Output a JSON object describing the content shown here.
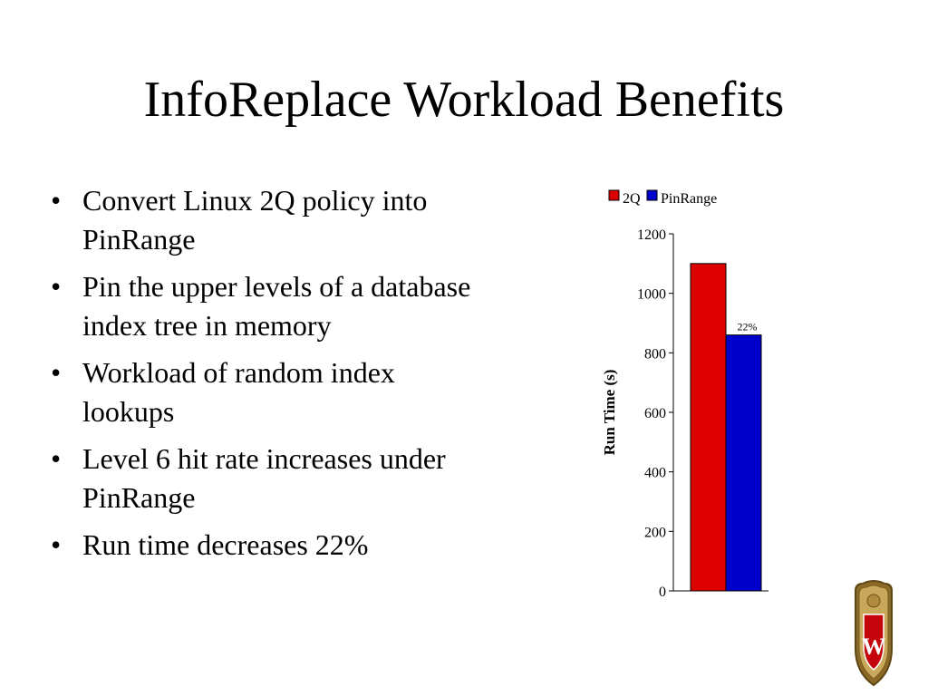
{
  "slide": {
    "title": "InfoReplace Workload Benefits",
    "bullets": [
      "Convert Linux 2Q policy into PinRange",
      "Pin the upper levels of a database index tree in memory",
      "Workload of random index lookups",
      "Level 6 hit rate increases under PinRange",
      "Run time decreases 22%"
    ],
    "bullet_glyph": "•"
  },
  "chart_data": {
    "type": "bar",
    "title": "",
    "xlabel": "",
    "ylabel": "Run Time (s)",
    "ylim": [
      0,
      1200
    ],
    "yticks": [
      0,
      200,
      400,
      600,
      800,
      1000,
      1200
    ],
    "categories": [
      ""
    ],
    "series": [
      {
        "name": "2Q",
        "color": "#dd0000",
        "values": [
          1100
        ]
      },
      {
        "name": "PinRange",
        "color": "#0000cc",
        "values": [
          860
        ]
      }
    ],
    "annotations": [
      {
        "series": "PinRange",
        "text": "22%"
      }
    ],
    "legend": "top",
    "grid": false
  },
  "logo": {
    "icon": "university-crest-icon",
    "letter": "W"
  }
}
